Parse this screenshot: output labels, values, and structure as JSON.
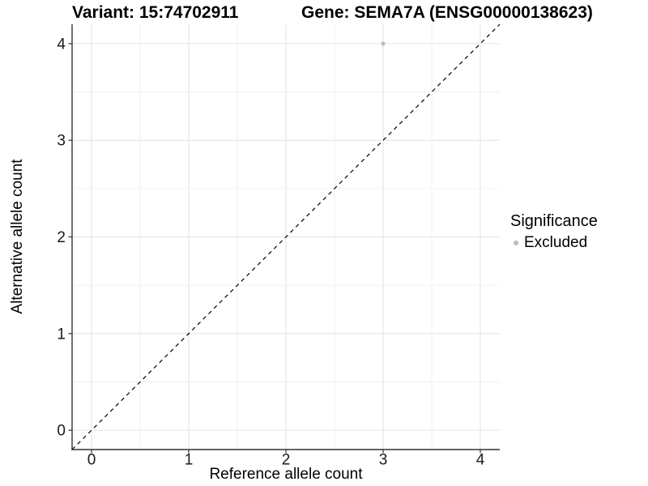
{
  "chart_data": {
    "type": "scatter",
    "title_left": "Variant: 15:74702911",
    "title_right": "Gene: SEMA7A (ENSG00000138623)",
    "xlabel": "Reference allele count",
    "ylabel": "Alternative allele count",
    "xlim": [
      -0.2,
      4.2
    ],
    "ylim": [
      -0.2,
      4.2
    ],
    "xticks": [
      0,
      1,
      2,
      3,
      4
    ],
    "yticks": [
      0,
      1,
      2,
      3,
      4
    ],
    "grid": "major and minor gridlines, light gray on white panel",
    "series": [
      {
        "name": "Excluded",
        "color": "#bdbdbd",
        "points": [
          {
            "x": 3,
            "y": 4
          }
        ]
      }
    ],
    "reference_line": {
      "type": "identity y=x",
      "slope": 1,
      "intercept": 0,
      "linestyle": "dashed",
      "color": "#000000"
    },
    "legend": {
      "title": "Significance",
      "position": "right",
      "entries": [
        {
          "label": "Excluded",
          "color": "#bdbdbd",
          "marker": "circle"
        }
      ]
    }
  },
  "colors": {
    "background": "#ffffff",
    "axis_line": "#333333",
    "tick_label": "#1a1a1a",
    "grid_major": "#e4e4e4",
    "grid_minor": "#f1f1f1",
    "point": "#bdbdbd"
  }
}
